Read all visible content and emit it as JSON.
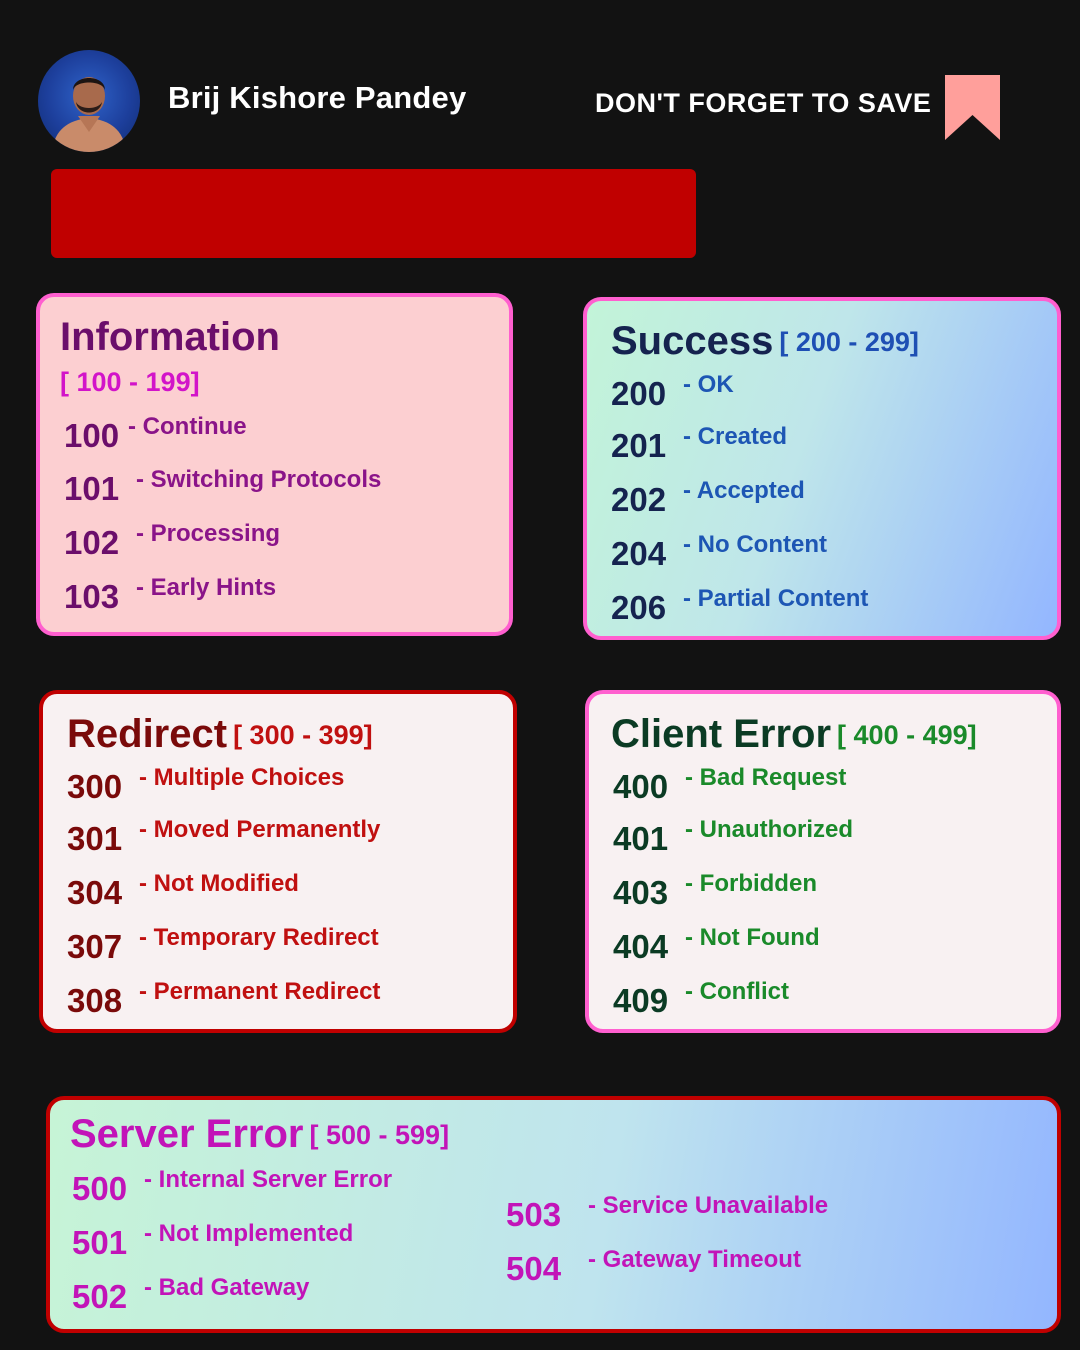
{
  "header": {
    "author_name": "Brij Kishore Pandey",
    "save_text": "DON'T FORGET TO SAVE",
    "bookmark_color": "#ff9f9b"
  },
  "title_bar_color": "#c00000",
  "sections": {
    "information": {
      "title": "Information",
      "range": "[ 100 - 199]",
      "items": [
        {
          "code": "100",
          "text": "- Continue"
        },
        {
          "code": "101",
          "text": "- Switching Protocols"
        },
        {
          "code": "102",
          "text": "- Processing"
        },
        {
          "code": "103",
          "text": "- Early Hints"
        }
      ]
    },
    "success": {
      "title": "Success",
      "range": "[ 200 - 299]",
      "items": [
        {
          "code": "200",
          "text": "- OK"
        },
        {
          "code": "201",
          "text": "- Created"
        },
        {
          "code": "202",
          "text": "- Accepted"
        },
        {
          "code": "204",
          "text": "- No Content"
        },
        {
          "code": "206",
          "text": "- Partial Content"
        }
      ]
    },
    "redirect": {
      "title": "Redirect",
      "range": "[ 300 - 399]",
      "items": [
        {
          "code": "300",
          "text": "- Multiple Choices"
        },
        {
          "code": "301",
          "text": "- Moved Permanently"
        },
        {
          "code": "304",
          "text": "- Not Modified"
        },
        {
          "code": "307",
          "text": "- Temporary Redirect"
        },
        {
          "code": "308",
          "text": "- Permanent Redirect"
        }
      ]
    },
    "client_error": {
      "title": "Client Error",
      "range": "[ 400 - 499]",
      "items": [
        {
          "code": "400",
          "text": "- Bad Request"
        },
        {
          "code": "401",
          "text": "- Unauthorized"
        },
        {
          "code": "403",
          "text": "- Forbidden"
        },
        {
          "code": "404",
          "text": "- Not Found"
        },
        {
          "code": "409",
          "text": "- Conflict"
        }
      ]
    },
    "server_error": {
      "title": "Server Error",
      "range": "[ 500 - 599]",
      "items": [
        {
          "code": "500",
          "text": "- Internal Server Error"
        },
        {
          "code": "501",
          "text": "- Not Implemented"
        },
        {
          "code": "502",
          "text": "- Bad Gateway"
        },
        {
          "code": "503",
          "text": "- Service Unavailable"
        },
        {
          "code": "504",
          "text": "- Gateway Timeout"
        }
      ]
    }
  }
}
